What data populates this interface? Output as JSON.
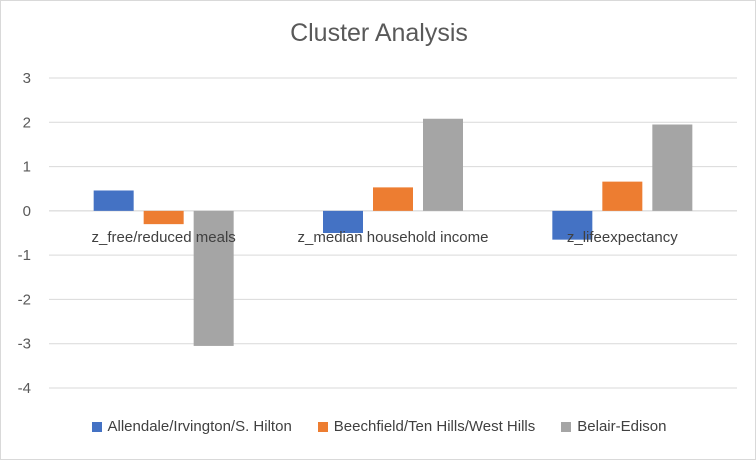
{
  "chart_data": {
    "type": "bar",
    "title": "Cluster Analysis",
    "categories": [
      "z_free/reduced meals",
      "z_median household income",
      "z_lifeexpectancy"
    ],
    "series": [
      {
        "name": "Allendale/Irvington/S. Hilton",
        "color": "#4472c4",
        "values": [
          0.46,
          -0.5,
          -0.65
        ]
      },
      {
        "name": "Beechfield/Ten Hills/West Hills",
        "color": "#ed7d31",
        "values": [
          -0.3,
          0.53,
          0.66
        ]
      },
      {
        "name": "Belair-Edison",
        "color": "#a5a5a5",
        "values": [
          -3.05,
          2.08,
          1.95
        ]
      }
    ],
    "ylim": [
      -4,
      3
    ],
    "yticks": [
      "3",
      "2",
      "1",
      "0",
      "-1",
      "-2",
      "-3",
      "-4"
    ],
    "grid": true,
    "legend_position": "bottom",
    "xlabel": "",
    "ylabel": ""
  }
}
